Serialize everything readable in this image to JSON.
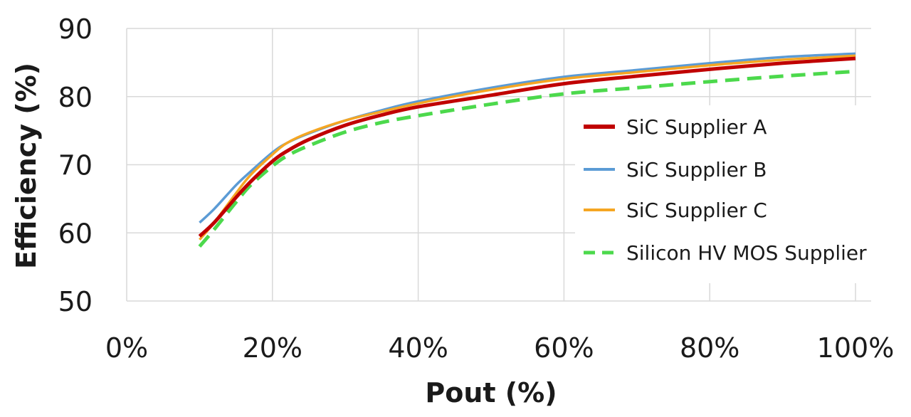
{
  "chart_data": {
    "type": "line",
    "xlabel": "Pout (%)",
    "ylabel": "Efficiency (%)",
    "xlim": [
      0,
      100
    ],
    "ylim": [
      50,
      90
    ],
    "x_ticks": [
      "0%",
      "20%",
      "40%",
      "60%",
      "80%",
      "100%"
    ],
    "y_ticks": [
      "50",
      "60",
      "70",
      "80",
      "90"
    ],
    "grid": true,
    "legend_position": "right",
    "series": [
      {
        "name": "SiC Supplier A",
        "color": "#c00000",
        "style": "solid",
        "x": [
          10,
          12,
          15,
          17,
          20,
          22,
          25,
          30,
          35,
          40,
          50,
          60,
          70,
          80,
          90,
          100
        ],
        "y": [
          59.5,
          61.5,
          65.2,
          67.5,
          70.5,
          72.0,
          73.7,
          75.8,
          77.3,
          78.5,
          80.2,
          81.9,
          83.0,
          84.0,
          84.9,
          85.6
        ]
      },
      {
        "name": "SiC Supplier B",
        "color": "#5b9bd5",
        "style": "solid",
        "x": [
          10,
          12,
          15,
          17,
          20,
          22,
          25,
          30,
          35,
          40,
          50,
          60,
          70,
          80,
          90,
          100
        ],
        "y": [
          61.5,
          63.5,
          67.0,
          69.0,
          71.8,
          73.2,
          74.6,
          76.5,
          78.0,
          79.3,
          81.3,
          82.9,
          83.9,
          84.9,
          85.8,
          86.3
        ]
      },
      {
        "name": "SiC Supplier C",
        "color": "#f5a623",
        "style": "solid",
        "x": [
          10,
          12,
          15,
          17,
          20,
          22,
          25,
          30,
          35,
          40,
          50,
          60,
          70,
          80,
          90,
          100
        ],
        "y": [
          59.0,
          61.5,
          65.8,
          68.5,
          71.5,
          73.2,
          74.7,
          76.5,
          77.8,
          79.0,
          81.0,
          82.6,
          83.6,
          84.6,
          85.4,
          86.0
        ]
      },
      {
        "name": "Silicon HV MOS Supplier",
        "color": "#4cd94c",
        "style": "dashed",
        "x": [
          10,
          12,
          15,
          17,
          20,
          22,
          25,
          30,
          35,
          40,
          50,
          60,
          70,
          80,
          90,
          100
        ],
        "y": [
          58.0,
          60.5,
          64.5,
          67.0,
          69.8,
          71.3,
          72.8,
          74.8,
          76.2,
          77.2,
          78.9,
          80.4,
          81.3,
          82.2,
          83.0,
          83.7
        ]
      }
    ]
  }
}
